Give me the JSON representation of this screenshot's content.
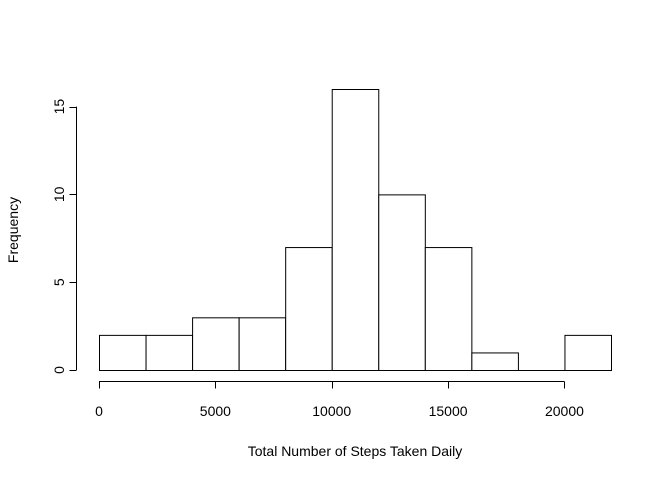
{
  "chart_data": {
    "type": "bar",
    "title": "",
    "xlabel": "Total Number of Steps Taken Daily",
    "ylabel": "Frequency",
    "bins": [
      {
        "start": 0,
        "end": 2000,
        "count": 2
      },
      {
        "start": 2000,
        "end": 4000,
        "count": 2
      },
      {
        "start": 4000,
        "end": 6000,
        "count": 3
      },
      {
        "start": 6000,
        "end": 8000,
        "count": 3
      },
      {
        "start": 8000,
        "end": 10000,
        "count": 7
      },
      {
        "start": 10000,
        "end": 12000,
        "count": 16
      },
      {
        "start": 12000,
        "end": 14000,
        "count": 10
      },
      {
        "start": 14000,
        "end": 16000,
        "count": 7
      },
      {
        "start": 16000,
        "end": 18000,
        "count": 1
      },
      {
        "start": 18000,
        "end": 20000,
        "count": 0
      },
      {
        "start": 20000,
        "end": 22000,
        "count": 2
      }
    ],
    "xlim": [
      0,
      22000
    ],
    "ylim": [
      0,
      16
    ],
    "x_ticks": [
      0,
      5000,
      10000,
      15000,
      20000
    ],
    "y_ticks": [
      0,
      5,
      10,
      15
    ],
    "grid": false,
    "legend": "none",
    "bar_fill": "#ffffff",
    "bar_stroke": "#000000"
  }
}
